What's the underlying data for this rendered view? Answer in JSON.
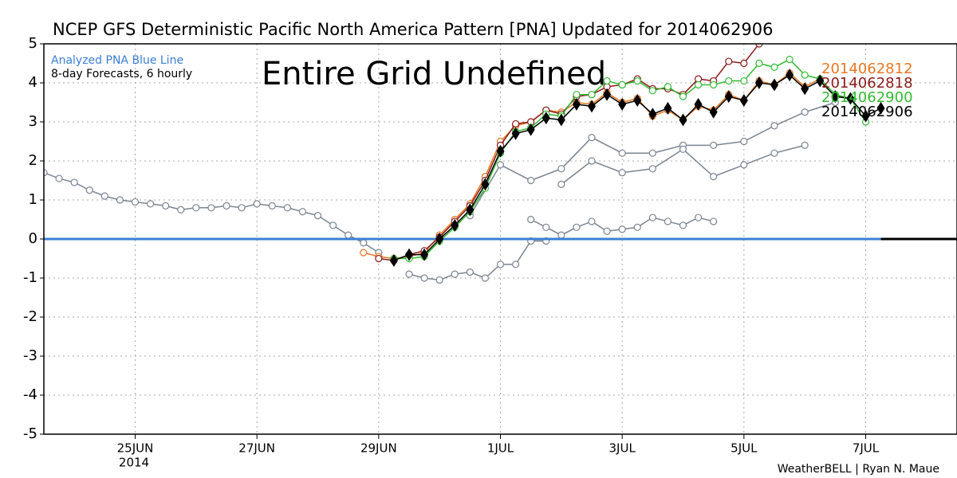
{
  "chart_data": {
    "type": "line",
    "title": "NCEP GFS Deterministic Pacific North America Pattern [PNA] Updated for 2014062906",
    "subtitle": "8-day Forecasts, 6 hourly",
    "annotation": "Entire Grid Undefined",
    "credit": "WeatherBELL | Ryan N. Maue",
    "x_year_label": "2014",
    "xlim": [
      23.5,
      38.5
    ],
    "xticks": [
      {
        "value": 25,
        "label": "25JUN"
      },
      {
        "value": 27,
        "label": "27JUN"
      },
      {
        "value": 29,
        "label": "29JUN"
      },
      {
        "value": 31,
        "label": "1JUL"
      },
      {
        "value": 33,
        "label": "3JUL"
      },
      {
        "value": 35,
        "label": "5JUL"
      },
      {
        "value": 37,
        "label": "7JUL"
      }
    ],
    "ylim": [
      -5,
      5
    ],
    "yticks": [
      -5,
      -4,
      -3,
      -2,
      -1,
      0,
      1,
      2,
      3,
      4,
      5
    ],
    "grid": true,
    "series": [
      {
        "color": "#7a8591",
        "marker": "circle",
        "x": [
          23.5,
          23.75,
          24,
          24.25,
          24.5,
          24.75,
          25,
          25.25,
          25.5,
          25.75,
          26,
          26.25,
          26.5,
          26.75,
          27,
          27.25,
          27.5,
          27.75,
          28,
          28.25,
          28.5,
          28.75,
          29
        ],
        "values": [
          1.7,
          1.55,
          1.45,
          1.25,
          1.1,
          1.0,
          0.95,
          0.9,
          0.85,
          0.75,
          0.8,
          0.8,
          0.85,
          0.8,
          0.9,
          0.85,
          0.8,
          0.7,
          0.6,
          0.35,
          0.1,
          -0.1,
          -0.35
        ]
      },
      {
        "color": "#7a8591",
        "marker": "circle",
        "x": [
          29.5,
          29.75,
          30,
          30.25,
          30.5,
          30.75,
          31,
          31.25,
          31.5,
          31.75
        ],
        "values": [
          -0.9,
          -1.0,
          -1.05,
          -0.9,
          -0.85,
          -1.0,
          -0.65,
          -0.65,
          -0.05,
          -0.05
        ]
      },
      {
        "color": "#7a8591",
        "marker": "circle",
        "x": [
          31.5,
          31.75,
          32,
          32.25,
          32.5,
          32.75,
          33,
          33.25,
          33.5,
          33.75,
          34,
          34.25,
          34.5
        ],
        "values": [
          0.5,
          0.3,
          0.1,
          0.3,
          0.45,
          0.2,
          0.25,
          0.3,
          0.55,
          0.45,
          0.35,
          0.55,
          0.45
        ]
      },
      {
        "color": "#7a8591",
        "marker": "circle",
        "x": [
          30.5,
          31,
          31.5,
          32,
          32.5,
          33,
          33.5,
          34,
          34.5,
          35,
          35.5,
          36,
          36.5
        ],
        "values": [
          0.6,
          1.9,
          1.5,
          1.8,
          2.6,
          2.2,
          2.2,
          2.4,
          2.4,
          2.5,
          2.9,
          3.25,
          3.5
        ]
      },
      {
        "color": "#7a8591",
        "marker": "circle",
        "x": [
          32,
          32.5,
          33,
          33.5,
          34,
          34.5,
          35,
          35.5,
          36
        ],
        "values": [
          1.4,
          2.0,
          1.7,
          1.8,
          2.3,
          1.6,
          1.9,
          2.2,
          2.4
        ]
      },
      {
        "name": "Analyzed PNA Blue Line",
        "color": "#3a7fd5",
        "marker": "none",
        "x": [
          23.5,
          37.25
        ],
        "values": [
          0,
          0
        ]
      },
      {
        "name": "2014062812",
        "color": "#e87722",
        "marker": "circle",
        "x": [
          28.75,
          29,
          29.25,
          29.5,
          29.75,
          30,
          30.25,
          30.5,
          30.75,
          31,
          31.25,
          31.5,
          31.75,
          32,
          32.25,
          32.5,
          32.75,
          33,
          33.25,
          33.5,
          33.75,
          34,
          34.25,
          34.5,
          34.75,
          35,
          35.25,
          35.5,
          35.75,
          36,
          36.25
        ],
        "values": [
          -0.35,
          -0.45,
          -0.5,
          -0.45,
          -0.35,
          0.1,
          0.5,
          0.9,
          1.6,
          2.5,
          2.9,
          3.0,
          3.3,
          3.25,
          3.5,
          3.45,
          3.75,
          3.5,
          3.6,
          3.15,
          3.3,
          3.05,
          3.4,
          3.3,
          3.7,
          3.55,
          4.05,
          3.95,
          4.25,
          3.9,
          4.1
        ]
      },
      {
        "name": "2014062818",
        "color": "#8b1a1a",
        "marker": "circle",
        "x": [
          29,
          29.25,
          29.5,
          29.75,
          30,
          30.25,
          30.5,
          30.75,
          31,
          31.25,
          31.5,
          31.75,
          32,
          32.25,
          32.5,
          32.75,
          33,
          33.25,
          33.5,
          33.75,
          34,
          34.25,
          34.5,
          34.75,
          35,
          35.25
        ],
        "values": [
          -0.5,
          -0.55,
          -0.4,
          -0.3,
          0.05,
          0.45,
          0.85,
          1.5,
          2.4,
          2.95,
          3.0,
          3.3,
          3.2,
          3.65,
          3.7,
          3.9,
          3.95,
          4.1,
          3.85,
          3.85,
          3.7,
          4.1,
          4.05,
          4.55,
          4.5,
          5.0
        ]
      },
      {
        "name": "2014062900",
        "color": "#33bb33",
        "marker": "circle",
        "x": [
          29.25,
          29.5,
          29.75,
          30,
          30.25,
          30.5,
          30.75,
          31,
          31.25,
          31.5,
          31.75,
          32,
          32.25,
          32.5,
          32.75,
          33,
          33.25,
          33.5,
          33.75,
          34,
          34.25,
          34.5,
          34.75,
          35,
          35.25,
          35.5,
          35.75,
          36,
          36.25,
          36.5,
          36.75,
          37
        ],
        "values": [
          -0.5,
          -0.5,
          -0.45,
          -0.05,
          0.3,
          0.7,
          1.3,
          2.2,
          2.75,
          2.85,
          3.2,
          3.15,
          3.7,
          3.7,
          4.05,
          3.95,
          4.05,
          3.8,
          3.9,
          3.65,
          3.95,
          3.95,
          4.05,
          4.05,
          4.5,
          4.4,
          4.6,
          4.2,
          4.1,
          3.7,
          3.6,
          3.0
        ]
      },
      {
        "name": "2014062906",
        "color": "#000000",
        "marker": "diamond",
        "x": [
          29.25,
          29.5,
          29.75,
          30,
          30.25,
          30.5,
          30.75,
          31,
          31.25,
          31.5,
          31.75,
          32,
          32.25,
          32.5,
          32.75,
          33,
          33.25,
          33.5,
          33.75,
          34,
          34.25,
          34.5,
          34.75,
          35,
          35.25,
          35.5,
          35.75,
          36,
          36.25,
          36.5,
          36.75,
          37,
          37.25
        ],
        "values": [
          -0.55,
          -0.4,
          -0.4,
          0,
          0.35,
          0.75,
          1.4,
          2.25,
          2.7,
          2.8,
          3.1,
          3.05,
          3.45,
          3.4,
          3.7,
          3.45,
          3.55,
          3.2,
          3.35,
          3.05,
          3.45,
          3.25,
          3.65,
          3.55,
          4.0,
          3.95,
          4.2,
          3.85,
          4.05,
          3.65,
          3.6,
          3.15,
          3.35
        ]
      }
    ]
  }
}
